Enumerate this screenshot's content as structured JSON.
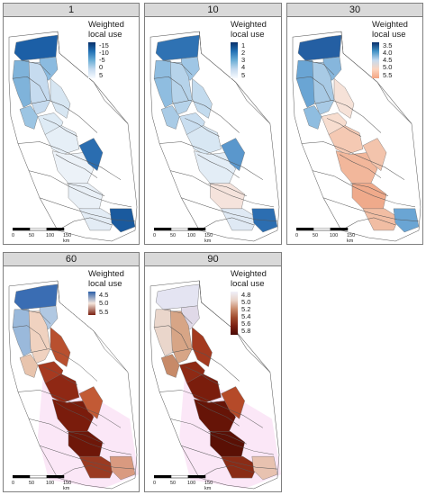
{
  "legend_title": "Weighted local use",
  "scale_labels": [
    "0",
    "50",
    "100",
    "150 km"
  ],
  "panels": [
    {
      "label": "1",
      "ticks": [
        "-15",
        "-10",
        "-5",
        "0",
        "5"
      ],
      "legend_colors": [
        "#08306b",
        "#2171b5",
        "#6baed6",
        "#c6dbef",
        "#f7fbff"
      ],
      "fills": {
        "north": "#1c5fa6",
        "nw": "#7fb3da",
        "ne": "#8bbbe0",
        "sac": "#c6dbef",
        "bay": "#9cc5e3",
        "sierra": "#d7e6f2",
        "sj_n": "#deebf5",
        "sj_mid": "#e6eff7",
        "sj_s": "#ecf2f8",
        "tulare": "#e9f0f7",
        "kern": "#e3ecf5",
        "sierra_hot": "#2a6db0",
        "kern_e": "#1a5a9e"
      },
      "pink": false
    },
    {
      "label": "10",
      "ticks": [
        "1",
        "2",
        "3",
        "4",
        "5"
      ],
      "legend_colors": [
        "#08306b",
        "#2171b5",
        "#6baed6",
        "#c6dbef",
        "#f7fbff"
      ],
      "fills": {
        "north": "#2f72b3",
        "nw": "#8fbde0",
        "ne": "#9fc6e5",
        "sac": "#b6d3ea",
        "bay": "#a9cbe6",
        "sierra": "#c3dbee",
        "sj_n": "#c9def0",
        "sj_mid": "#d8e7f3",
        "sj_s": "#e3edf6",
        "tulare": "#f5e3dc",
        "kern": "#dfe9f4",
        "sierra_hot": "#5a97cc",
        "kern_e": "#2c6eb1"
      },
      "pink": false
    },
    {
      "label": "30",
      "ticks": [
        "3.5",
        "4.0",
        "4.5",
        "5.0",
        "5.5"
      ],
      "legend_colors": [
        "#08306b",
        "#4292c6",
        "#c6dbef",
        "#fcd5c0",
        "#f4a582"
      ],
      "fills": {
        "north": "#245fa3",
        "nw": "#6aa5d4",
        "ne": "#86b6dc",
        "sac": "#a8cae5",
        "bay": "#8fbde0",
        "sierra": "#f6e2d8",
        "sj_n": "#f7ddcf",
        "sj_mid": "#f5c9b3",
        "sj_s": "#f2b79b",
        "tulare": "#efaa8b",
        "kern": "#f1bda3",
        "sierra_hot": "#f3c4ac",
        "kern_e": "#6aa5d4"
      },
      "pink": false
    },
    {
      "label": "60",
      "ticks": [
        "4.5",
        "5.0",
        "5.5"
      ],
      "legend_colors": [
        "#2b5fa8",
        "#f5e6dc",
        "#7a1f0f"
      ],
      "fills": {
        "north": "#3a6db3",
        "nw": "#9ab9db",
        "ne": "#b0c8e2",
        "sac": "#f0d2c0",
        "bay": "#e8c4ad",
        "sierra": "#b8502f",
        "sj_n": "#a63a20",
        "sj_mid": "#8f2814",
        "sj_s": "#7a1c0c",
        "tulare": "#6e1709",
        "kern": "#9a3a22",
        "sierra_hot": "#c25a35",
        "kern_e": "#d99a80"
      },
      "pink": true
    },
    {
      "label": "90",
      "ticks": [
        "4.8",
        "5.0",
        "5.2",
        "5.4",
        "5.6",
        "5.8"
      ],
      "legend_colors": [
        "#f0effa",
        "#e9d3c8",
        "#c98a6b",
        "#a04a2c",
        "#7a1f10",
        "#4a0a05"
      ],
      "fills": {
        "north": "#e4e4f2",
        "nw": "#ead6cb",
        "ne": "#e0d9e8",
        "sac": "#d7a586",
        "bay": "#c78a68",
        "sierra": "#a33a1f",
        "sj_n": "#8e2a14",
        "sj_mid": "#7a1d0c",
        "sj_s": "#661407",
        "tulare": "#5a1005",
        "kern": "#8a2c16",
        "sierra_hot": "#b54a29",
        "kern_e": "#e8c2b0"
      },
      "pink": true
    }
  ]
}
